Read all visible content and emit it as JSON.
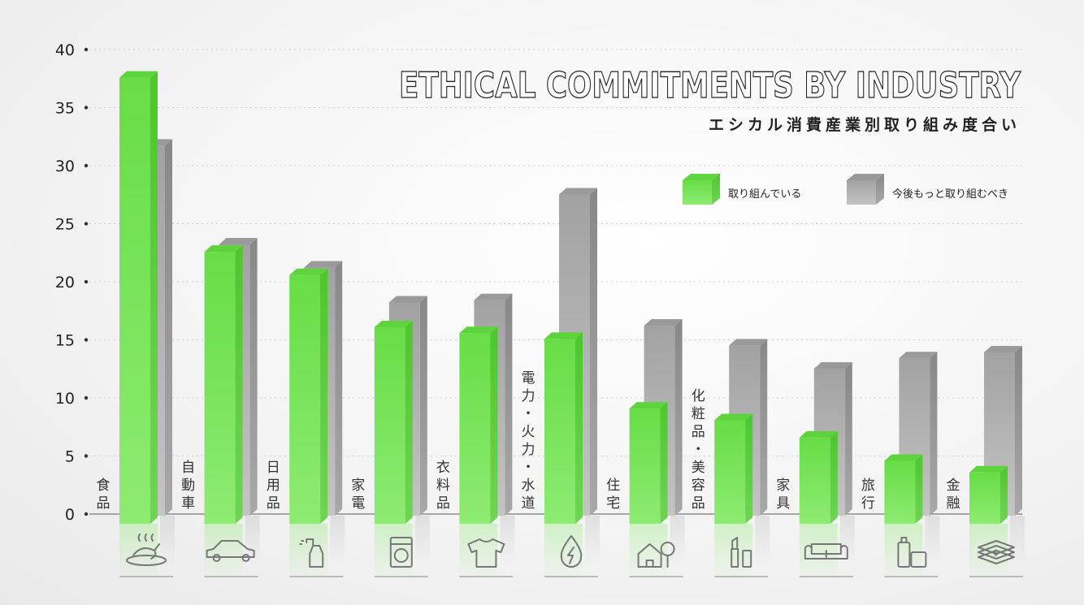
{
  "chart_data": {
    "type": "bar",
    "title": "ETHICAL COMMITMENTS BY INDUSTRY",
    "subtitle": "エシカル消費産業別取り組み度合い",
    "ylim": [
      0,
      40
    ],
    "yticks": [
      0,
      5,
      10,
      15,
      20,
      25,
      30,
      35,
      40
    ],
    "grid": true,
    "legend_position": "top-right",
    "categories": [
      "食品",
      "自動車",
      "日用品",
      "家電",
      "衣料品",
      "電力・火力・水道",
      "住宅",
      "化粧品・美容品",
      "家具",
      "旅行",
      "金融"
    ],
    "icons": [
      "food-icon",
      "car-icon",
      "spray-bottle-icon",
      "washing-machine-icon",
      "shirt-icon",
      "energy-drop-icon",
      "house-icon",
      "cosmetics-icon",
      "sofa-icon",
      "luggage-icon",
      "money-icon"
    ],
    "series": [
      {
        "name": "取り組んでいる",
        "color": "#7ee85e",
        "values": [
          38,
          23,
          21,
          16.5,
          16,
          15.5,
          9.5,
          8.5,
          7,
          5,
          4
        ]
      },
      {
        "name": "今後もっと取り組むべき",
        "color": "#a8a8a8",
        "values": [
          32,
          23.5,
          21.5,
          18.5,
          18.7,
          27.8,
          16.5,
          14.8,
          12.8,
          13.7,
          14.2
        ]
      }
    ]
  }
}
